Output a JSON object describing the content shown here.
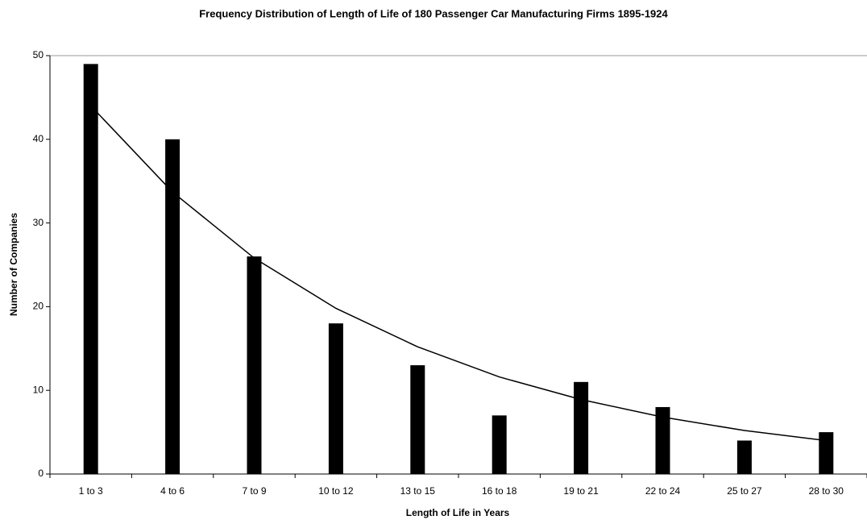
{
  "chart_data": {
    "type": "bar",
    "title": "Frequency Distribution of Length of Life of 180 Passenger Car Manufacturing Firms 1895-1924",
    "x_label": "Length of Life in Years",
    "y_label": "Number of Companies",
    "categories": [
      "1 to 3",
      "4 to 6",
      "7 to 9",
      "10 to 12",
      "13 to 15",
      "16 to 18",
      "19 to 21",
      "22 to 24",
      "25 to 27",
      "28 to 30"
    ],
    "series": [
      {
        "type": "bar",
        "color": "#000000",
        "values": [
          49,
          40,
          26,
          18,
          13,
          7,
          11,
          8,
          4,
          5
        ]
      },
      {
        "type": "line",
        "color": "#000000",
        "values": [
          44,
          33.7,
          25.8,
          19.8,
          15.2,
          11.6,
          8.9,
          6.8,
          5.2,
          4.0
        ]
      }
    ],
    "ylim": [
      0,
      50
    ],
    "yticks": [
      0,
      10,
      20,
      30,
      40,
      50
    ],
    "grid": false
  }
}
